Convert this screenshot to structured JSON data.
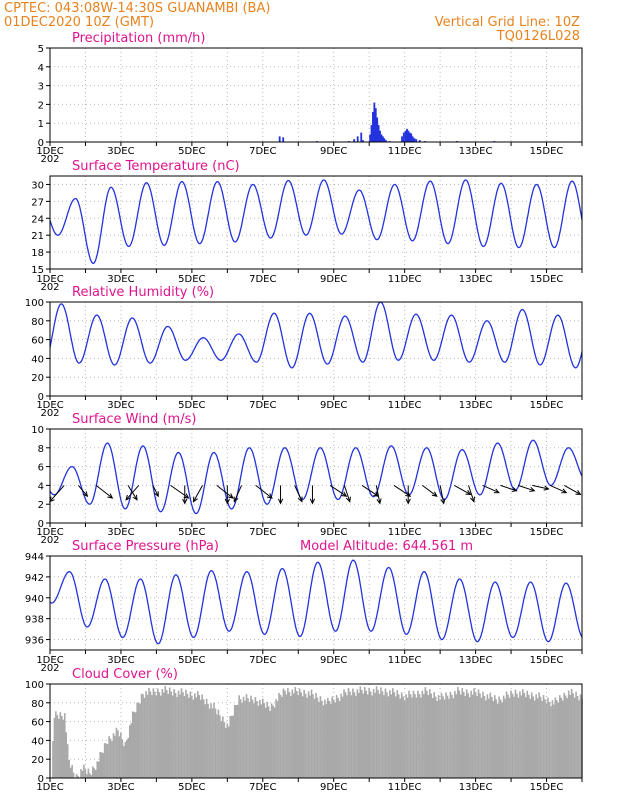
{
  "header": {
    "line1_left": "CPTEC:   043:08W-14:30S   GUANAMBI (BA)",
    "line2_left": "01DEC2020 10Z (GMT)",
    "line2_right": "Vertical Grid Line: 10Z",
    "line3_right": "TQ0126L028"
  },
  "x_axis": {
    "labels": [
      "1DEC",
      "3DEC",
      "5DEC",
      "7DEC",
      "9DEC",
      "11DEC",
      "13DEC",
      "15DEC"
    ],
    "label_days": [
      0,
      2,
      4,
      6,
      8,
      10,
      12,
      14
    ],
    "range_days": [
      0,
      15
    ],
    "clipped_year_label": "202"
  },
  "colors": {
    "series": "#2233dd",
    "cloud": "#a9a9a9",
    "title": "#e0148c",
    "header": "#e8821e"
  },
  "chart_data": [
    {
      "id": "precip",
      "type": "bar",
      "title": "Precipitation (mm/h)",
      "ylim": [
        0,
        5
      ],
      "yticks": [
        0,
        1,
        2,
        3,
        4,
        5
      ],
      "grid": true,
      "bars": [
        [
          6.45,
          0.3
        ],
        [
          6.55,
          0.25
        ],
        [
          7.5,
          0.05
        ],
        [
          8.4,
          0.05
        ],
        [
          8.55,
          0.15
        ],
        [
          8.65,
          0.3
        ],
        [
          8.75,
          0.5
        ],
        [
          8.8,
          0.1
        ],
        [
          9.0,
          0.4
        ],
        [
          9.04,
          0.9
        ],
        [
          9.08,
          1.6
        ],
        [
          9.12,
          2.1
        ],
        [
          9.16,
          1.8
        ],
        [
          9.2,
          1.3
        ],
        [
          9.24,
          0.9
        ],
        [
          9.28,
          0.6
        ],
        [
          9.32,
          0.4
        ],
        [
          9.36,
          0.3
        ],
        [
          9.4,
          0.2
        ],
        [
          9.45,
          0.1
        ],
        [
          9.55,
          0.05
        ],
        [
          9.9,
          0.3
        ],
        [
          9.95,
          0.5
        ],
        [
          10.0,
          0.6
        ],
        [
          10.04,
          0.7
        ],
        [
          10.08,
          0.6
        ],
        [
          10.12,
          0.5
        ],
        [
          10.16,
          0.45
        ],
        [
          10.2,
          0.3
        ],
        [
          10.25,
          0.2
        ],
        [
          10.3,
          0.15
        ],
        [
          10.4,
          0.1
        ],
        [
          10.55,
          0.05
        ],
        [
          11.45,
          0.05
        ],
        [
          12.5,
          0.05
        ],
        [
          14.5,
          0.03
        ]
      ]
    },
    {
      "id": "temperature",
      "type": "line",
      "title": "Surface Temperature (nC)",
      "ylim": [
        15,
        31.5
      ],
      "yticks": [
        15,
        18,
        21,
        24,
        27,
        30
      ],
      "grid": true,
      "daily_max": [
        27.5,
        29.5,
        30.3,
        30.5,
        30.5,
        30.0,
        30.7,
        30.8,
        29.0,
        30.0,
        30.6,
        30.8,
        30.2,
        30.0,
        30.6,
        31.0
      ],
      "daily_min": [
        21.0,
        16.0,
        19.0,
        19.2,
        19.5,
        19.8,
        20.5,
        21.0,
        21.2,
        20.2,
        20.0,
        19.5,
        19.0,
        18.8,
        18.8,
        19.0,
        20.5
      ]
    },
    {
      "id": "humidity",
      "type": "line",
      "title": "Relative Humidity (%)",
      "ylim": [
        0,
        100
      ],
      "yticks": [
        0,
        20,
        40,
        60,
        80,
        100
      ],
      "grid": true,
      "daily_max": [
        98,
        86,
        83,
        74,
        62,
        66,
        88,
        88,
        85,
        100,
        87,
        86,
        80,
        92,
        86,
        90
      ],
      "daily_min": [
        33,
        35,
        33,
        35,
        38,
        38,
        36,
        30,
        34,
        36,
        38,
        38,
        36,
        36,
        33,
        30
      ]
    },
    {
      "id": "wind",
      "type": "line",
      "title": "Surface Wind (m/s)",
      "ylim": [
        0,
        10
      ],
      "yticks": [
        0,
        2,
        4,
        6,
        8,
        10
      ],
      "grid": true,
      "daily_max": [
        6.0,
        8.5,
        8.2,
        7.5,
        7.5,
        8.0,
        8.0,
        8.0,
        8.0,
        8.2,
        8.0,
        7.8,
        8.5,
        8.8,
        8.0,
        6.5
      ],
      "daily_min": [
        3.0,
        2.0,
        1.5,
        1.2,
        1.0,
        1.5,
        2.0,
        2.5,
        2.5,
        2.8,
        3.0,
        2.5,
        3.0,
        3.5,
        4.0,
        4.5,
        2.0
      ],
      "vectors": [
        [
          0.4,
          -0.8,
          -0.9
        ],
        [
          0.8,
          0.5,
          -0.6
        ],
        [
          1.3,
          0.9,
          -0.7
        ],
        [
          2.2,
          0.5,
          -0.8
        ],
        [
          2.5,
          -0.7,
          -0.8
        ],
        [
          2.9,
          0.3,
          -0.6
        ],
        [
          3.4,
          1.0,
          -0.7
        ],
        [
          3.8,
          0.0,
          -1.0
        ],
        [
          4.3,
          -0.5,
          -0.9
        ],
        [
          4.7,
          0.9,
          -0.7
        ],
        [
          5.0,
          0.0,
          -1.0
        ],
        [
          5.4,
          -0.4,
          -0.9
        ],
        [
          5.8,
          0.9,
          -0.7
        ],
        [
          6.5,
          0.0,
          -1.0
        ],
        [
          6.9,
          0.4,
          -0.9
        ],
        [
          7.4,
          0.0,
          -1.0
        ],
        [
          7.9,
          0.9,
          -0.6
        ],
        [
          8.3,
          0.3,
          -0.9
        ],
        [
          8.8,
          0.9,
          -0.6
        ],
        [
          9.2,
          0.2,
          -1.0
        ],
        [
          9.7,
          0.9,
          -0.6
        ],
        [
          10.1,
          0.0,
          -1.0
        ],
        [
          10.5,
          0.8,
          -0.6
        ],
        [
          11.0,
          0.2,
          -1.0
        ],
        [
          11.4,
          0.9,
          -0.5
        ],
        [
          11.8,
          0.3,
          -0.9
        ],
        [
          12.2,
          0.9,
          -0.4
        ],
        [
          12.7,
          0.9,
          -0.3
        ],
        [
          13.2,
          0.9,
          -0.3
        ],
        [
          13.6,
          0.9,
          -0.2
        ],
        [
          14.1,
          0.9,
          -0.4
        ],
        [
          14.5,
          0.9,
          -0.5
        ]
      ]
    },
    {
      "id": "pressure",
      "type": "line",
      "title": "Surface Pressure (hPa)",
      "annotation": "Model Altitude: 644.561 m",
      "ylim": [
        935,
        944
      ],
      "yticks": [
        936,
        938,
        940,
        942,
        944
      ],
      "grid": true,
      "daily_max": [
        942.5,
        941.8,
        941.8,
        942.2,
        942.6,
        942.5,
        942.8,
        943.4,
        943.6,
        942.9,
        942.5,
        941.8,
        941.5,
        941.5,
        941.4,
        941.2
      ],
      "daily_min": [
        939.5,
        937.2,
        936.2,
        935.6,
        936.2,
        936.8,
        936.5,
        936.3,
        936.8,
        936.8,
        936.5,
        936.0,
        935.8,
        936.2,
        935.8,
        936.1,
        937.0
      ]
    },
    {
      "id": "cloud",
      "type": "area",
      "title": "Cloud Cover (%)",
      "ylim": [
        0,
        100
      ],
      "yticks": [
        0,
        20,
        40,
        60,
        80,
        100
      ],
      "grid": true,
      "profile": [
        [
          0,
          0
        ],
        [
          0.1,
          72
        ],
        [
          0.4,
          72
        ],
        [
          0.5,
          25
        ],
        [
          0.7,
          5
        ],
        [
          0.9,
          15
        ],
        [
          1.1,
          10
        ],
        [
          1.3,
          20
        ],
        [
          1.6,
          45
        ],
        [
          1.9,
          55
        ],
        [
          2.1,
          40
        ],
        [
          2.3,
          70
        ],
        [
          2.6,
          95
        ],
        [
          3.2,
          98
        ],
        [
          3.8,
          95
        ],
        [
          4.2,
          92
        ],
        [
          4.6,
          80
        ],
        [
          5.0,
          60
        ],
        [
          5.3,
          90
        ],
        [
          5.8,
          88
        ],
        [
          6.2,
          80
        ],
        [
          6.6,
          98
        ],
        [
          7.3,
          95
        ],
        [
          7.8,
          85
        ],
        [
          8.4,
          97
        ],
        [
          9.0,
          98
        ],
        [
          9.5,
          97
        ],
        [
          10.0,
          92
        ],
        [
          10.6,
          97
        ],
        [
          11.0,
          90
        ],
        [
          11.5,
          97
        ],
        [
          12.1,
          95
        ],
        [
          12.6,
          88
        ],
        [
          13.1,
          96
        ],
        [
          13.7,
          92
        ],
        [
          14.2,
          85
        ],
        [
          14.6,
          96
        ],
        [
          15.0,
          90
        ]
      ]
    }
  ]
}
